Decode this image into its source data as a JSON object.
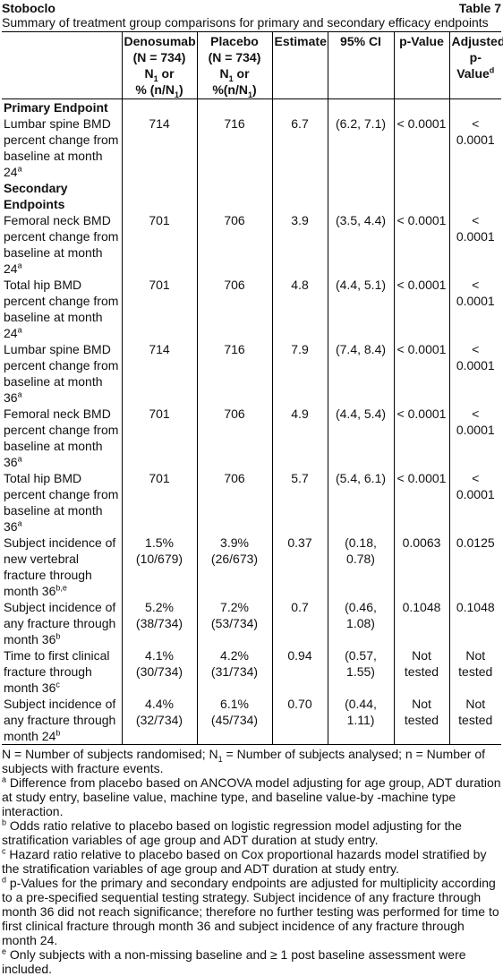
{
  "header": {
    "product": "Stoboclo",
    "table_no": "Table 7"
  },
  "title": "Summary of treatment group comparisons for primary and secondary efficacy endpoints",
  "columns": {
    "c1": {
      "l1": "Denosumab",
      "l2": "(N = 734)",
      "l3a": "N",
      "l3s": "1",
      "l3b": " or",
      "l4a": "% (n/N",
      "l4s": "1",
      "l4b": ")"
    },
    "c2": {
      "l1": "Placebo",
      "l2": "(N = 734)",
      "l3a": "N",
      "l3s": "1",
      "l3b": " or",
      "l4a": "%(n/N",
      "l4s": "1",
      "l4b": ")"
    },
    "c3": "Estimate",
    "c4": "95% CI",
    "c5": "p-Value",
    "c6": {
      "l1": "Adjusted",
      "l2a": "p-Value",
      "l2s": "d"
    }
  },
  "rows": [
    {
      "group": "Primary Endpoint"
    },
    {
      "label": "Lumbar spine BMD percent change from baseline at month 24",
      "sup": "a",
      "d": "714",
      "p": "716",
      "est": "6.7",
      "ci": "(6.2, 7.1)",
      "pv": "< 0.0001",
      "adj": "< 0.0001"
    },
    {
      "group": "Secondary Endpoints"
    },
    {
      "label": "Femoral neck BMD percent change from baseline at month 24",
      "sup": "a",
      "d": "701",
      "p": "706",
      "est": "3.9",
      "ci": "(3.5, 4.4)",
      "pv": "< 0.0001",
      "adj": "< 0.0001"
    },
    {
      "label": "Total hip BMD percent change from baseline at month 24",
      "sup": "a",
      "d": "701",
      "p": "706",
      "est": "4.8",
      "ci": "(4.4, 5.1)",
      "pv": "< 0.0001",
      "adj": "< 0.0001"
    },
    {
      "label": "Lumbar spine BMD percent change from baseline at month 36",
      "sup": "a",
      "d": "714",
      "p": "716",
      "est": "7.9",
      "ci": "(7.4, 8.4)",
      "pv": "< 0.0001",
      "adj": "< 0.0001"
    },
    {
      "label": "Femoral neck BMD percent change from baseline at month 36",
      "sup": "a",
      "d": "701",
      "p": "706",
      "est": "4.9",
      "ci": "(4.4, 5.4)",
      "pv": "< 0.0001",
      "adj": "< 0.0001"
    },
    {
      "label": "Total hip BMD percent change from baseline at month 36",
      "sup": "a",
      "d": "701",
      "p": "706",
      "est": "5.7",
      "ci": "(5.4, 6.1)",
      "pv": "< 0.0001",
      "adj": "< 0.0001"
    },
    {
      "label": "Subject incidence of new vertebral fracture through month 36",
      "sup": "b,e",
      "d": "1.5%",
      "d2": "(10/679)",
      "p": "3.9%",
      "p2": "(26/673)",
      "est": "0.37",
      "ci": "(0.18, 0.78)",
      "pv": "0.0063",
      "adj": "0.0125"
    },
    {
      "label": "Subject incidence of any fracture through month 36",
      "sup": "b",
      "d": "5.2%",
      "d2": "(38/734)",
      "p": "7.2%",
      "p2": "(53/734)",
      "est": "0.7",
      "ci": "(0.46, 1.08)",
      "pv": "0.1048",
      "adj": "0.1048"
    },
    {
      "label": "Time to first clinical fracture through month 36",
      "sup": "c",
      "d": "4.1%",
      "d2": "(30/734)",
      "p": "4.2%",
      "p2": "(31/734)",
      "est": "0.94",
      "ci": "(0.57, 1.55)",
      "pv": "Not",
      "pv2": "tested",
      "adj": "Not",
      "adj2": "tested"
    },
    {
      "label": "Subject incidence of any fracture through month 24",
      "sup": "b",
      "d": "4.4%",
      "d2": "(32/734)",
      "p": "6.1%",
      "p2": "(45/734)",
      "est": "0.70",
      "ci": "(0.44, 1.11)",
      "pv": "Not",
      "pv2": "tested",
      "adj": "Not",
      "adj2": "tested"
    }
  ],
  "notes": {
    "n0a": "N = Number of subjects randomised; N",
    "n0s": "1",
    "n0b": " = Number of subjects analysed; n = Number of subjects with fracture events.",
    "a": "Difference from placebo based on ANCOVA model adjusting for age group, ADT duration at study entry, baseline value, machine type, and baseline value-by -machine type interaction.",
    "b": "Odds ratio relative to placebo based on logistic regression model adjusting for the stratification variables of age group and ADT duration at study entry.",
    "c": "Hazard ratio relative to placebo based on Cox proportional hazards model stratified by the stratification variables of age group and ADT duration at study entry.",
    "d": "p-Values for the primary and secondary endpoints are adjusted for multiplicity according to a pre-specified sequential testing strategy. Subject incidence of any fracture through month 36 did not reach significance; therefore no further testing was performed for time to first clinical fracture through month 36 and subject incidence of any fracture through month 24.",
    "e": "Only subjects with a non-missing baseline and ≥ 1 post baseline assessment were included.",
    "ma": "a",
    "mb": "b",
    "mc": "c",
    "md": "d",
    "me": "e"
  }
}
